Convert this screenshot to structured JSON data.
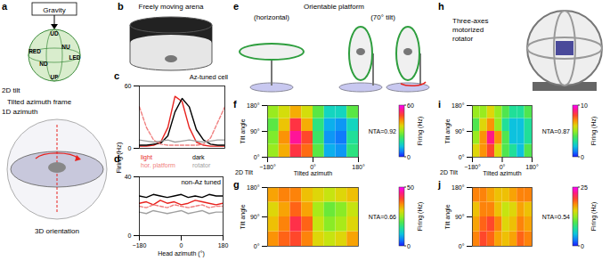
{
  "panel_letters": [
    "a",
    "b",
    "c",
    "d",
    "e",
    "f",
    "g",
    "h",
    "i",
    "j"
  ],
  "diagrams": {
    "a": {
      "top_box": "Gravity",
      "sphere_labels": [
        "UD",
        "UP",
        "RED",
        "LED",
        "NU",
        "ND"
      ],
      "sphere_title": "2D tilt",
      "frame_title": "Tilted azimuth frame",
      "disk_label": "1D azimuth",
      "footer": "3D orientation"
    },
    "b": {
      "title": "Freely moving arena"
    },
    "e": {
      "title": "Orientable platform",
      "captions": [
        "(horizontal)",
        "(70° tilt)"
      ]
    },
    "h": {
      "title": "Three-axes motorized rotator"
    }
  },
  "chart_data": [
    {
      "type": "line",
      "title": "Az-tuned cell",
      "ylabel": "Firing (Hz)",
      "x": [
        -180,
        -150,
        -120,
        -90,
        -60,
        -30,
        0,
        30,
        60,
        90,
        120,
        150,
        180
      ],
      "xlim": [
        -180,
        180
      ],
      "xticks": [
        {
          "value": -180,
          "label": "−180"
        },
        0,
        180
      ],
      "ylim": [
        0,
        60
      ],
      "yticks": [
        0,
        60
      ],
      "tick_labels": "y",
      "series": [
        {
          "name": "light",
          "color": "#e8221e",
          "values": [
            2,
            2,
            3,
            6,
            20,
            50,
            45,
            20,
            6,
            3,
            2,
            2,
            2
          ]
        },
        {
          "name": "dark",
          "color": "#000000",
          "values": [
            3,
            3,
            4,
            5,
            12,
            35,
            48,
            40,
            18,
            8,
            4,
            3,
            3
          ]
        },
        {
          "name": "hor. platform",
          "color": "#f08080",
          "line_style": "dashed",
          "values": [
            40,
            20,
            8,
            4,
            3,
            3,
            3,
            3,
            3,
            4,
            10,
            25,
            40
          ]
        },
        {
          "name": "rotator",
          "color": "#a0a0a0",
          "values": [
            8,
            7,
            6,
            7,
            8,
            6,
            7,
            8,
            7,
            6,
            7,
            8,
            8
          ]
        }
      ]
    },
    {
      "type": "line",
      "title": "non-Az tuned",
      "xlabel": "Head azimuth (°)",
      "x": [
        -180,
        -150,
        -120,
        -90,
        -60,
        -30,
        0,
        30,
        60,
        90,
        120,
        150,
        180
      ],
      "xlim": [
        -180,
        180
      ],
      "xticks": [
        {
          "value": -180,
          "label": "−180"
        },
        0,
        180
      ],
      "ylim": [
        0,
        40
      ],
      "yticks": [
        0,
        40
      ],
      "legend": "top",
      "series": [
        {
          "name": "light",
          "color": "#e8221e",
          "values": [
            22,
            23,
            21,
            24,
            22,
            23,
            21,
            22,
            24,
            23,
            22,
            21,
            22
          ]
        },
        {
          "name": "dark",
          "color": "#000000",
          "values": [
            27,
            26,
            28,
            27,
            26,
            27,
            28,
            26,
            27,
            26,
            28,
            27,
            27
          ]
        },
        {
          "name": "hor. platform",
          "color": "#f08080",
          "line_style": "dashed",
          "values": [
            20,
            19,
            21,
            20,
            19,
            21,
            20,
            19,
            20,
            21,
            19,
            20,
            20
          ]
        },
        {
          "name": "rotator",
          "color": "#a0a0a0",
          "values": [
            16,
            15,
            17,
            16,
            15,
            16,
            17,
            15,
            16,
            17,
            15,
            16,
            16
          ]
        }
      ]
    },
    {
      "type": "heatmap",
      "xlabel": "Tilted azimuth",
      "xlabel2": "2D Tilt",
      "ylabel": "Tilt angle",
      "nta": "NTA=0.92",
      "x": [
        -157.5,
        -112.5,
        -67.5,
        -22.5,
        22.5,
        67.5,
        112.5,
        157.5
      ],
      "y": [
        22.5,
        67.5,
        112.5,
        157.5
      ],
      "values": [
        [
          30,
          40,
          50,
          45,
          25,
          10,
          8,
          20
        ],
        [
          28,
          42,
          55,
          48,
          22,
          8,
          6,
          18
        ],
        [
          25,
          38,
          50,
          40,
          20,
          10,
          8,
          15
        ],
        [
          30,
          35,
          40,
          35,
          25,
          15,
          15,
          25
        ]
      ],
      "xlim": [
        -180,
        180
      ],
      "xticks": [
        {
          "value": -180,
          "label": "−180°"
        },
        {
          "value": 0,
          "label": "0°"
        },
        {
          "value": 180,
          "label": "180°"
        }
      ],
      "ylim": [
        0,
        180
      ],
      "yticks": [
        {
          "value": 0,
          "label": "0°"
        },
        {
          "value": 90,
          "label": "90°"
        },
        {
          "value": 180,
          "label": "180°"
        }
      ],
      "colorbar": {
        "range": [
          0,
          60
        ],
        "ticks": [
          0,
          60
        ],
        "label": "Firing (Hz)"
      }
    },
    {
      "type": "heatmap",
      "ylabel": "Tilt angle",
      "nta": "NTA=0.66",
      "tick_labels": "y",
      "x": [
        -157.5,
        -112.5,
        -67.5,
        -22.5,
        22.5,
        67.5,
        112.5,
        157.5
      ],
      "y": [
        22.5,
        67.5,
        112.5,
        157.5
      ],
      "values": [
        [
          35,
          38,
          40,
          36,
          30,
          28,
          30,
          34
        ],
        [
          32,
          36,
          42,
          38,
          28,
          24,
          26,
          30
        ],
        [
          30,
          34,
          38,
          34,
          26,
          22,
          24,
          28
        ],
        [
          34,
          36,
          36,
          32,
          30,
          28,
          30,
          32
        ]
      ],
      "xlim": [
        -180,
        180
      ],
      "xticks": [
        {
          "value": -180,
          "label": "−180°"
        },
        {
          "value": 0,
          "label": "0°"
        },
        {
          "value": 180,
          "label": "180°"
        }
      ],
      "ylim": [
        0,
        180
      ],
      "yticks": [
        {
          "value": 0,
          "label": "0°"
        },
        {
          "value": 90,
          "label": "90°"
        },
        {
          "value": 180,
          "label": "180°"
        }
      ],
      "colorbar": {
        "range": [
          0,
          50
        ],
        "ticks": [
          0,
          50
        ],
        "label": "Firing (Hz)"
      }
    },
    {
      "type": "heatmap",
      "xlabel": "Tilted azimuth",
      "xlabel2": "2D Tilt",
      "ylabel": "Tilt angle",
      "nta": "NTA=0.87",
      "x": [
        -157.5,
        -112.5,
        -67.5,
        -22.5,
        22.5,
        67.5,
        112.5,
        157.5
      ],
      "y": [
        22.5,
        67.5,
        112.5,
        157.5
      ],
      "values": [
        [
          6,
          7,
          8,
          6,
          4,
          3,
          2,
          4
        ],
        [
          5,
          7,
          9,
          7,
          4,
          2,
          2,
          3
        ],
        [
          4,
          6,
          7,
          5,
          3,
          2,
          2,
          3
        ],
        [
          5,
          5,
          6,
          5,
          4,
          3,
          3,
          4
        ]
      ],
      "xlim": [
        -180,
        180
      ],
      "xticks": [
        {
          "value": -180,
          "label": "−180°"
        },
        {
          "value": 0,
          "label": "0°"
        },
        {
          "value": 180,
          "label": "180°"
        }
      ],
      "ylim": [
        0,
        180
      ],
      "yticks": [
        {
          "value": 0,
          "label": "0°"
        },
        {
          "value": 90,
          "label": "90°"
        },
        {
          "value": 180,
          "label": "180°"
        }
      ],
      "colorbar": {
        "range": [
          0,
          10
        ],
        "ticks": [
          0,
          10
        ],
        "label": "Firing (Hz)"
      }
    },
    {
      "type": "heatmap",
      "ylabel": "Tilt angle",
      "nta": "NTA=0.54",
      "tick_labels": "y",
      "x": [
        -157.5,
        -112.5,
        -67.5,
        -22.5,
        22.5,
        67.5,
        112.5,
        157.5
      ],
      "y": [
        22.5,
        67.5,
        112.5,
        157.5
      ],
      "values": [
        [
          18,
          20,
          19,
          17,
          16,
          17,
          19,
          18
        ],
        [
          17,
          19,
          20,
          18,
          15,
          16,
          18,
          17
        ],
        [
          16,
          18,
          18,
          16,
          14,
          15,
          17,
          16
        ],
        [
          18,
          18,
          17,
          16,
          16,
          17,
          18,
          18
        ]
      ],
      "xlim": [
        -180,
        180
      ],
      "xticks": [
        {
          "value": -180,
          "label": "−180°"
        },
        {
          "value": 0,
          "label": "0°"
        },
        {
          "value": 180,
          "label": "180°"
        }
      ],
      "ylim": [
        0,
        180
      ],
      "yticks": [
        {
          "value": 0,
          "label": "0°"
        },
        {
          "value": 90,
          "label": "90°"
        },
        {
          "value": 180,
          "label": "180°"
        }
      ],
      "colorbar": {
        "range": [
          0,
          25
        ],
        "ticks": [
          0,
          25
        ],
        "label": "Firing (Hz)"
      }
    }
  ]
}
